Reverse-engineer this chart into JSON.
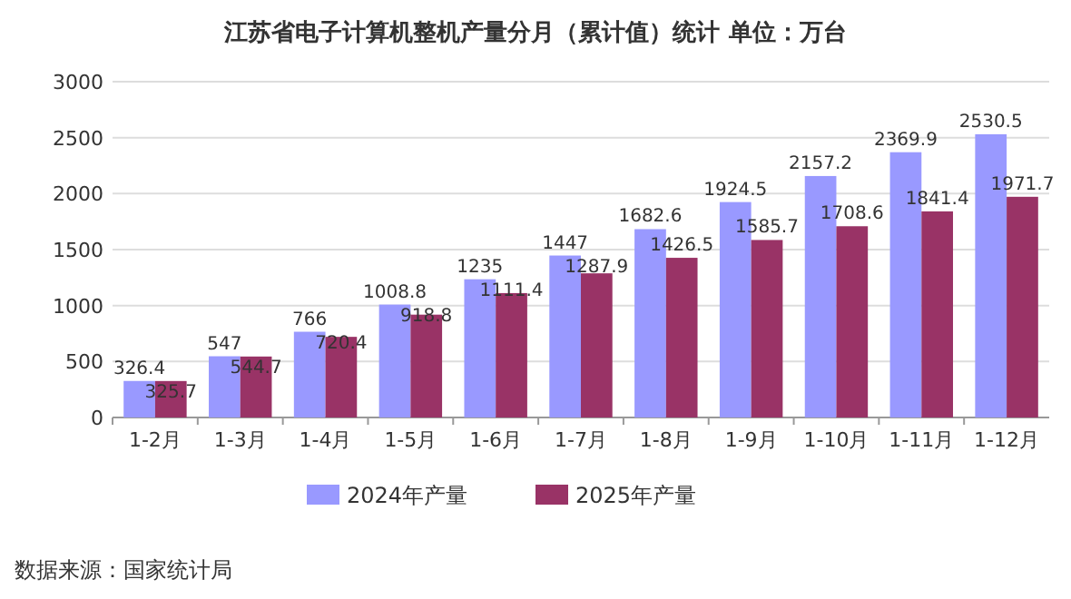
{
  "chart_data": {
    "type": "bar",
    "title": "江苏省电子计算机整机产量分月（累计值）统计  单位：万台",
    "categories": [
      "1-2月",
      "1-3月",
      "1-4月",
      "1-5月",
      "1-6月",
      "1-7月",
      "1-8月",
      "1-9月",
      "1-10月",
      "1-11月",
      "1-12月"
    ],
    "series": [
      {
        "name": "2024年产量",
        "color": "#9999ff",
        "values": [
          326.4,
          547,
          766,
          1008.8,
          1235,
          1447,
          1682.6,
          1924.5,
          2157.2,
          2369.9,
          2530.5
        ]
      },
      {
        "name": "2025年产量",
        "color": "#993366",
        "values": [
          325.7,
          544.7,
          720.4,
          918.8,
          1111.4,
          1287.9,
          1426.5,
          1585.7,
          1708.6,
          1841.4,
          1971.7
        ]
      }
    ],
    "ylim": [
      0,
      3000
    ],
    "yticks": [
      0,
      500,
      1000,
      1500,
      2000,
      2500,
      3000
    ],
    "grid": "y",
    "legend": "bottom",
    "data_labels": true,
    "annotations": [
      "数据来源：国家统计局"
    ]
  }
}
